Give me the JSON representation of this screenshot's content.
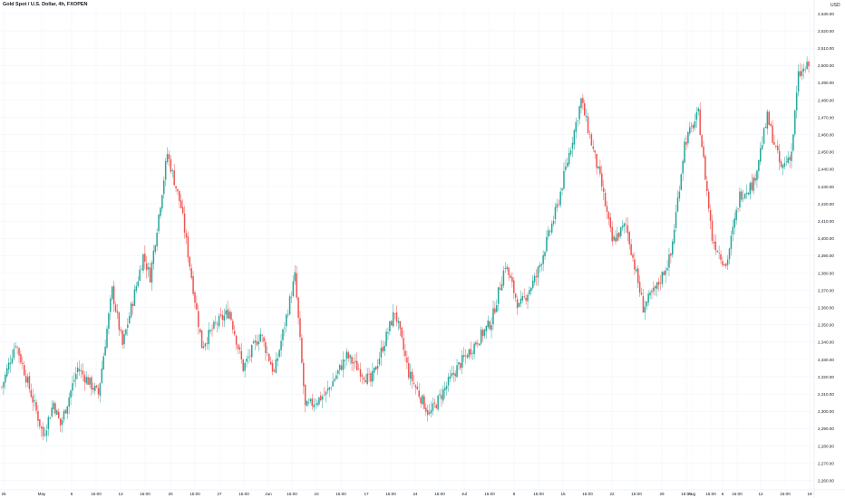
{
  "header": {
    "symbol_title": "Gold Spot / U.S. Dollar, 4h, FXOPEN",
    "currency": "USD"
  },
  "colors": {
    "up": "#26a69a",
    "down": "#ef5350",
    "grid": "#f0f3fa",
    "text": "#131722",
    "axis_line": "#e0e3eb"
  },
  "chart_data": {
    "type": "candlestick",
    "title": "Gold Spot / U.S. Dollar, 4h, FXOPEN",
    "ylabel": "USD",
    "ylim": [
      2260,
      2540
    ],
    "grid": true,
    "y_ticks": [
      "2,530.00",
      "2,520.00",
      "2,510.00",
      "2,500.00",
      "2,490.00",
      "2,480.00",
      "2,470.00",
      "2,460.00",
      "2,450.00",
      "2,440.00",
      "2,430.00",
      "2,420.00",
      "2,410.00",
      "2,400.00",
      "2,390.00",
      "2,380.00",
      "2,370.00",
      "2,360.00",
      "2,350.00",
      "2,340.00",
      "2,330.00",
      "2,320.00",
      "2,310.00",
      "2,300.00",
      "2,290.00",
      "2,280.00",
      "2,270.00",
      "2,260.00"
    ],
    "x_labels": [
      "25",
      "May",
      "6",
      "15:00",
      "13",
      "15:00",
      "20",
      "15:00",
      "27",
      "15:00",
      "Jun",
      "15:00",
      "10",
      "15:00",
      "17",
      "15:00",
      "24",
      "15:00",
      "Jul",
      "15:00",
      "8",
      "15:00",
      "15",
      "15:00",
      "22",
      "15:00",
      "29",
      "15:00",
      "Aug",
      "15:00",
      "6",
      "15:00",
      "12",
      "15:00",
      "19"
    ],
    "x_label_centers": [
      4,
      46,
      79,
      106,
      133,
      160,
      188,
      215,
      242,
      269,
      296,
      322,
      349,
      376,
      404,
      431,
      458,
      485,
      512,
      540,
      567,
      594,
      621,
      648,
      675,
      702,
      730,
      757,
      763,
      784,
      797,
      813,
      839,
      866,
      893
    ],
    "trend": [
      {
        "i": 0,
        "p": 2314
      },
      {
        "i": 8,
        "p": 2340
      },
      {
        "i": 20,
        "p": 2300
      },
      {
        "i": 24,
        "p": 2286
      },
      {
        "i": 30,
        "p": 2305
      },
      {
        "i": 34,
        "p": 2292
      },
      {
        "i": 44,
        "p": 2325
      },
      {
        "i": 56,
        "p": 2310
      },
      {
        "i": 64,
        "p": 2370
      },
      {
        "i": 70,
        "p": 2338
      },
      {
        "i": 82,
        "p": 2390
      },
      {
        "i": 86,
        "p": 2378
      },
      {
        "i": 96,
        "p": 2449
      },
      {
        "i": 104,
        "p": 2418
      },
      {
        "i": 116,
        "p": 2338
      },
      {
        "i": 124,
        "p": 2350
      },
      {
        "i": 132,
        "p": 2358
      },
      {
        "i": 140,
        "p": 2325
      },
      {
        "i": 150,
        "p": 2345
      },
      {
        "i": 158,
        "p": 2322
      },
      {
        "i": 170,
        "p": 2378
      },
      {
        "i": 176,
        "p": 2302
      },
      {
        "i": 188,
        "p": 2310
      },
      {
        "i": 200,
        "p": 2332
      },
      {
        "i": 214,
        "p": 2317
      },
      {
        "i": 228,
        "p": 2358
      },
      {
        "i": 236,
        "p": 2322
      },
      {
        "i": 248,
        "p": 2298
      },
      {
        "i": 264,
        "p": 2325
      },
      {
        "i": 284,
        "p": 2352
      },
      {
        "i": 292,
        "p": 2385
      },
      {
        "i": 300,
        "p": 2360
      },
      {
        "i": 310,
        "p": 2378
      },
      {
        "i": 322,
        "p": 2418
      },
      {
        "i": 336,
        "p": 2480
      },
      {
        "i": 348,
        "p": 2430
      },
      {
        "i": 354,
        "p": 2398
      },
      {
        "i": 362,
        "p": 2408
      },
      {
        "i": 372,
        "p": 2360
      },
      {
        "i": 380,
        "p": 2372
      },
      {
        "i": 388,
        "p": 2390
      },
      {
        "i": 396,
        "p": 2455
      },
      {
        "i": 404,
        "p": 2472
      },
      {
        "i": 412,
        "p": 2400
      },
      {
        "i": 420,
        "p": 2384
      },
      {
        "i": 428,
        "p": 2425
      },
      {
        "i": 436,
        "p": 2432
      },
      {
        "i": 444,
        "p": 2470
      },
      {
        "i": 452,
        "p": 2440
      },
      {
        "i": 458,
        "p": 2450
      },
      {
        "i": 462,
        "p": 2494
      },
      {
        "i": 468,
        "p": 2500
      }
    ],
    "candle_count": 469
  }
}
